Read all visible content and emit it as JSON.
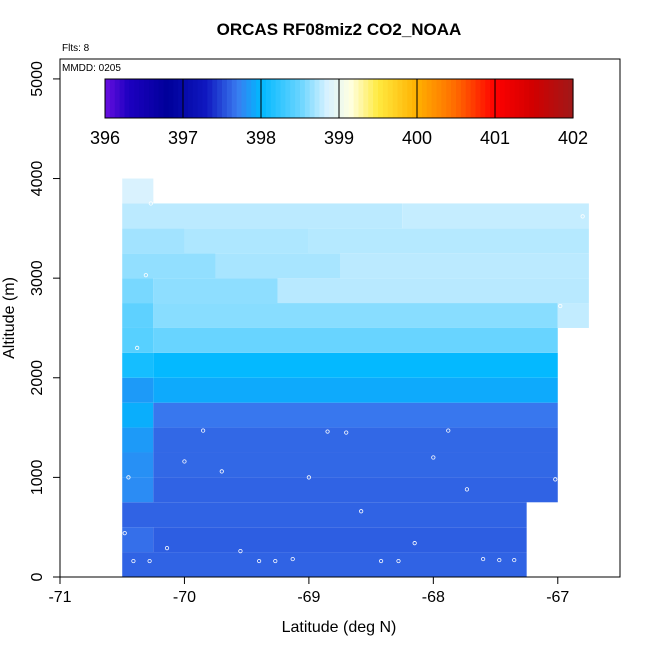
{
  "chart_data": {
    "type": "heatmap",
    "title": "ORCAS RF08miz2 CO2_NOAA",
    "xlabel": "Latitude (deg N)",
    "ylabel": "Altitude (m)",
    "xlim": [
      -71,
      -66.5
    ],
    "ylim": [
      0,
      5200
    ],
    "x_ticks": [
      -71,
      -70,
      -69,
      -68,
      -67
    ],
    "y_ticks": [
      0,
      1000,
      2000,
      3000,
      4000,
      5000
    ],
    "annotations": {
      "flights": "Flts: 8",
      "mmdd": "MMDD: 0205"
    },
    "colorbar": {
      "ticks": [
        396,
        397,
        398,
        399,
        400,
        401,
        402
      ],
      "range": [
        396,
        402
      ],
      "stops": [
        {
          "v": 396.0,
          "c": "#6a0fe0"
        },
        {
          "v": 396.3,
          "c": "#1d00c0"
        },
        {
          "v": 396.8,
          "c": "#00009a"
        },
        {
          "v": 397.3,
          "c": "#1018c0"
        },
        {
          "v": 397.7,
          "c": "#3a7cf0"
        },
        {
          "v": 398.0,
          "c": "#00b8ff"
        },
        {
          "v": 398.5,
          "c": "#68d4ff"
        },
        {
          "v": 398.85,
          "c": "#d8f2ff"
        },
        {
          "v": 399.15,
          "c": "#ffffe0"
        },
        {
          "v": 399.5,
          "c": "#ffea40"
        },
        {
          "v": 400.0,
          "c": "#ffb000"
        },
        {
          "v": 400.5,
          "c": "#ff6a00"
        },
        {
          "v": 401.0,
          "c": "#ff0000"
        },
        {
          "v": 401.5,
          "c": "#d00000"
        },
        {
          "v": 402.0,
          "c": "#a01818"
        }
      ]
    },
    "bands": [
      {
        "alt": [
          0,
          250
        ],
        "cells": [
          {
            "x": [
              -70.5,
              -67.25
            ],
            "v": 397.6
          }
        ]
      },
      {
        "alt": [
          250,
          500
        ],
        "cells": [
          {
            "x": [
              -70.5,
              -70.25
            ],
            "v": 397.65
          },
          {
            "x": [
              -70.25,
              -67.25
            ],
            "v": 397.58
          }
        ]
      },
      {
        "alt": [
          500,
          750
        ],
        "cells": [
          {
            "x": [
              -70.5,
              -67.25
            ],
            "v": 397.6
          }
        ]
      },
      {
        "alt": [
          750,
          1000
        ],
        "cells": [
          {
            "x": [
              -70.5,
              -70.25
            ],
            "v": 397.78
          },
          {
            "x": [
              -70.25,
              -67.0
            ],
            "v": 397.6
          }
        ]
      },
      {
        "alt": [
          1000,
          1250
        ],
        "cells": [
          {
            "x": [
              -70.5,
              -70.25
            ],
            "v": 397.8
          },
          {
            "x": [
              -70.25,
              -67.0
            ],
            "v": 397.62
          }
        ]
      },
      {
        "alt": [
          1250,
          1500
        ],
        "cells": [
          {
            "x": [
              -70.5,
              -70.25
            ],
            "v": 397.85
          },
          {
            "x": [
              -70.25,
              -67.0
            ],
            "v": 397.62
          }
        ]
      },
      {
        "alt": [
          1500,
          1750
        ],
        "cells": [
          {
            "x": [
              -70.5,
              -70.25
            ],
            "v": 397.95
          },
          {
            "x": [
              -70.25,
              -67.0
            ],
            "v": 397.68
          }
        ]
      },
      {
        "alt": [
          1750,
          2000
        ],
        "cells": [
          {
            "x": [
              -70.5,
              -70.25
            ],
            "v": 397.85
          },
          {
            "x": [
              -70.25,
              -67.0
            ],
            "v": 397.93
          }
        ]
      },
      {
        "alt": [
          2000,
          2250
        ],
        "cells": [
          {
            "x": [
              -70.5,
              -70.25
            ],
            "v": 398.1
          },
          {
            "x": [
              -70.25,
              -67.0
            ],
            "v": 398.02
          }
        ]
      },
      {
        "alt": [
          2250,
          2500
        ],
        "cells": [
          {
            "x": [
              -70.5,
              -70.25
            ],
            "v": 398.42
          },
          {
            "x": [
              -70.25,
              -67.0
            ],
            "v": 398.5
          }
        ]
      },
      {
        "alt": [
          2500,
          2750
        ],
        "cells": [
          {
            "x": [
              -70.5,
              -70.25
            ],
            "v": 398.45
          },
          {
            "x": [
              -70.25,
              -67.0
            ],
            "v": 398.6
          },
          {
            "x": [
              -67.0,
              -66.75
            ],
            "v": 398.78
          }
        ]
      },
      {
        "alt": [
          2750,
          3000
        ],
        "cells": [
          {
            "x": [
              -70.5,
              -70.25
            ],
            "v": 398.55
          },
          {
            "x": [
              -70.25,
              -69.25
            ],
            "v": 398.62
          },
          {
            "x": [
              -69.25,
              -66.75
            ],
            "v": 398.75
          }
        ]
      },
      {
        "alt": [
          3000,
          3250
        ],
        "cells": [
          {
            "x": [
              -70.5,
              -69.75
            ],
            "v": 398.63
          },
          {
            "x": [
              -69.75,
              -68.75
            ],
            "v": 398.7
          },
          {
            "x": [
              -68.75,
              -66.75
            ],
            "v": 398.76
          }
        ]
      },
      {
        "alt": [
          3250,
          3500
        ],
        "cells": [
          {
            "x": [
              -70.5,
              -70.0
            ],
            "v": 398.68
          },
          {
            "x": [
              -70.0,
              -69.0
            ],
            "v": 398.72
          },
          {
            "x": [
              -69.0,
              -66.75
            ],
            "v": 398.74
          }
        ]
      },
      {
        "alt": [
          3500,
          3750
        ],
        "cells": [
          {
            "x": [
              -70.5,
              -68.25
            ],
            "v": 398.76
          },
          {
            "x": [
              -68.25,
              -66.75
            ],
            "v": 398.79
          }
        ]
      },
      {
        "alt": [
          3750,
          4000
        ],
        "cells": [
          {
            "x": [
              -70.5,
              -70.25
            ],
            "v": 398.86
          }
        ]
      }
    ],
    "points": [
      [
        -70.48,
        440
      ],
      [
        -70.41,
        160
      ],
      [
        -70.28,
        160
      ],
      [
        -70.14,
        290
      ],
      [
        -69.55,
        260
      ],
      [
        -69.4,
        160
      ],
      [
        -69.27,
        160
      ],
      [
        -69.13,
        180
      ],
      [
        -70.45,
        1000
      ],
      [
        -70.0,
        1160
      ],
      [
        -69.7,
        1060
      ],
      [
        -69.0,
        1000
      ],
      [
        -69.85,
        1470
      ],
      [
        -68.85,
        1460
      ],
      [
        -68.7,
        1450
      ],
      [
        -68.58,
        660
      ],
      [
        -68.42,
        160
      ],
      [
        -68.28,
        160
      ],
      [
        -68.15,
        340
      ],
      [
        -68.0,
        1200
      ],
      [
        -67.88,
        1470
      ],
      [
        -67.73,
        880
      ],
      [
        -67.6,
        180
      ],
      [
        -67.47,
        170
      ],
      [
        -67.35,
        170
      ],
      [
        -67.02,
        980
      ],
      [
        -66.92,
        1840
      ],
      [
        -66.98,
        2720
      ],
      [
        -66.8,
        3620
      ],
      [
        -70.38,
        2300
      ],
      [
        -70.31,
        3030
      ],
      [
        -70.27,
        3750
      ]
    ]
  }
}
